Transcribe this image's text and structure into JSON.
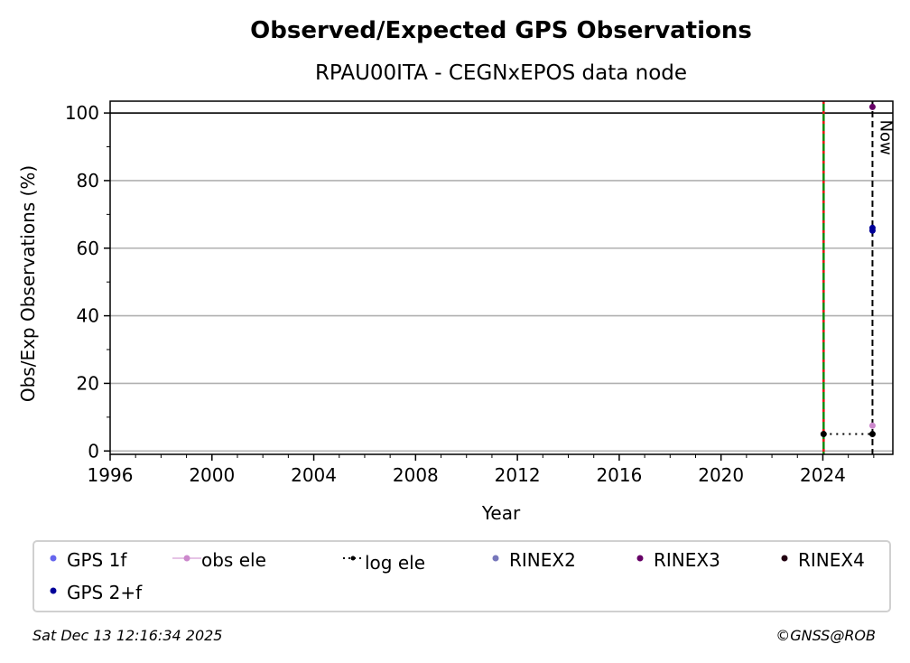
{
  "chart_data": {
    "type": "scatter",
    "title": "Observed/Expected GPS Observations",
    "subtitle": "RPAU00ITA - CEGNxEPOS data node",
    "xlabel": "Year",
    "ylabel": "Obs/Exp Observations (%)",
    "xlim": [
      1996,
      2026.75
    ],
    "ylim": [
      -1,
      103.5
    ],
    "xticks": [
      1996,
      2000,
      2004,
      2008,
      2012,
      2016,
      2020,
      2024
    ],
    "yticks": [
      0,
      20,
      40,
      60,
      80,
      100
    ],
    "grid": "horizontal",
    "reference_line_y": 100,
    "start_line_x": 2024.03,
    "now_line": {
      "x": 2025.95,
      "label": "Now"
    },
    "legend_placement": "bottom",
    "series": [
      {
        "name": "GPS 1f",
        "color": "#6666ee",
        "points": []
      },
      {
        "name": "obs ele",
        "color": "#cc88cc",
        "points": [
          [
            2025.95,
            7.5
          ]
        ]
      },
      {
        "name": "log ele",
        "color": "#000000",
        "style": "dotted",
        "points": [
          [
            2024.03,
            5
          ],
          [
            2025.95,
            5
          ]
        ]
      },
      {
        "name": "RINEX2",
        "color": "#7777bb",
        "points": []
      },
      {
        "name": "RINEX3",
        "color": "#660066",
        "points": [
          [
            2025.95,
            101.8
          ]
        ]
      },
      {
        "name": "RINEX4",
        "color": "#220011",
        "points": []
      },
      {
        "name": "GPS 2+f",
        "color": "#000099",
        "points": [
          [
            2025.95,
            66
          ],
          [
            2025.95,
            65.2
          ]
        ]
      }
    ]
  },
  "footer": {
    "timestamp": "Sat Dec 13 12:16:34 2025",
    "credit": "©GNSS@ROB"
  }
}
